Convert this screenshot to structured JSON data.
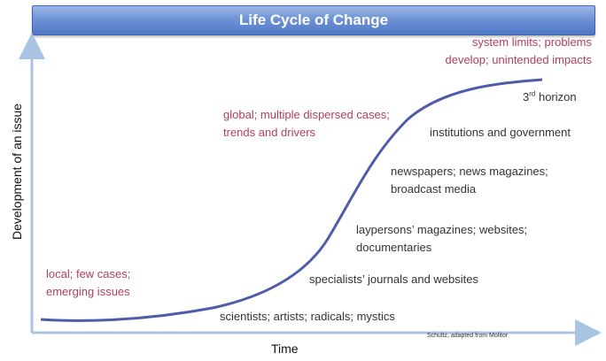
{
  "title": "Life Cycle of Change",
  "axes": {
    "y_label": "Development of an issue",
    "x_label": "Time"
  },
  "credit": "Schultz, adapted from Molitor",
  "colors": {
    "curve": "#4f5bab",
    "axis": "#a9c3e3",
    "accent_text": "#b0405a",
    "stage_text": "#333333",
    "title_bar": "#5b82cc"
  },
  "curve_phase_labels": [
    {
      "text": "local; few cases;\nemerging issues"
    },
    {
      "text": "global; multiple dispersed cases;\ntrends and drivers"
    },
    {
      "text": "system limits; problems\ndevelop; unintended impacts"
    }
  ],
  "stage_labels": [
    {
      "text": "scientists; artists; radicals; mystics"
    },
    {
      "text": "specialists’ journals and websites"
    },
    {
      "text": "laypersons’ magazines; websites;\ndocumentaries"
    },
    {
      "text": "newspapers; news magazines;\nbroadcast media"
    },
    {
      "text": "institutions and government"
    }
  ],
  "horizon_label": {
    "number": "3",
    "suffix": "rd",
    "text": " horizon"
  }
}
